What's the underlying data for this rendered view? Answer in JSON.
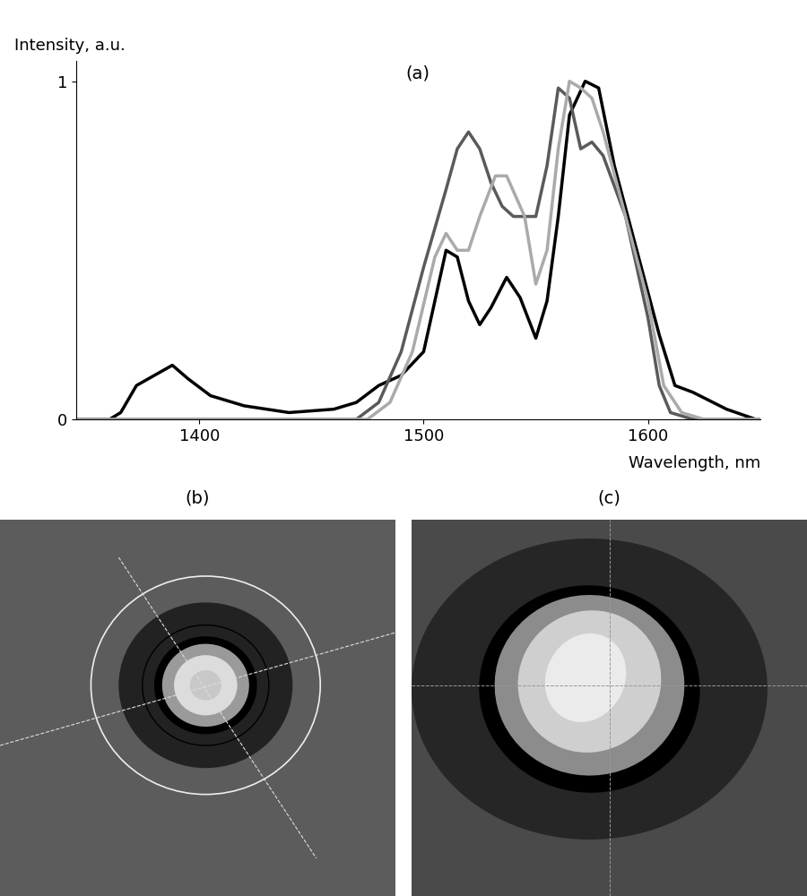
{
  "chart_data": {
    "type": "line",
    "title": "(a)",
    "x_label": "Wavelength, nm",
    "y_label": "Intensity, a.u.",
    "xlim": [
      1345,
      1650
    ],
    "ylim": [
      0,
      1.06
    ],
    "xticks": [
      1400,
      1500,
      1600
    ],
    "yticks": [
      0,
      1
    ],
    "grid": false,
    "series": [
      {
        "color": "#000000",
        "x": [
          1345,
          1360,
          1365,
          1372,
          1380,
          1388,
          1395,
          1405,
          1420,
          1440,
          1460,
          1470,
          1480,
          1490,
          1500,
          1505,
          1510,
          1515,
          1520,
          1525,
          1530,
          1537,
          1543,
          1550,
          1555,
          1560,
          1565,
          1572,
          1578,
          1585,
          1595,
          1605,
          1612,
          1620,
          1635,
          1648
        ],
        "values": [
          0,
          0,
          0.02,
          0.1,
          0.13,
          0.16,
          0.12,
          0.07,
          0.04,
          0.02,
          0.03,
          0.05,
          0.1,
          0.13,
          0.2,
          0.35,
          0.5,
          0.48,
          0.35,
          0.28,
          0.33,
          0.42,
          0.36,
          0.24,
          0.35,
          0.6,
          0.9,
          1.0,
          0.98,
          0.75,
          0.5,
          0.25,
          0.1,
          0.08,
          0.03,
          0
        ]
      },
      {
        "color": "#5a5a5a",
        "x": [
          1345,
          1470,
          1480,
          1490,
          1500,
          1510,
          1515,
          1520,
          1525,
          1530,
          1535,
          1540,
          1550,
          1555,
          1560,
          1565,
          1570,
          1575,
          1580,
          1590,
          1600,
          1605,
          1610,
          1620,
          1650
        ],
        "values": [
          0,
          0,
          0.05,
          0.2,
          0.45,
          0.68,
          0.8,
          0.85,
          0.8,
          0.7,
          0.63,
          0.6,
          0.6,
          0.75,
          0.98,
          0.95,
          0.8,
          0.82,
          0.78,
          0.6,
          0.3,
          0.1,
          0.02,
          0,
          0
        ]
      },
      {
        "color": "#aaaaaa",
        "x": [
          1345,
          1475,
          1485,
          1495,
          1505,
          1510,
          1515,
          1520,
          1525,
          1532,
          1537,
          1545,
          1550,
          1555,
          1560,
          1565,
          1570,
          1575,
          1580,
          1590,
          1600,
          1607,
          1615,
          1625,
          1650
        ],
        "values": [
          0,
          0,
          0.05,
          0.2,
          0.48,
          0.55,
          0.5,
          0.5,
          0.6,
          0.72,
          0.72,
          0.6,
          0.4,
          0.5,
          0.8,
          1.0,
          0.98,
          0.95,
          0.85,
          0.6,
          0.35,
          0.1,
          0.02,
          0,
          0
        ]
      }
    ]
  },
  "images": [
    {
      "label": "(b)"
    },
    {
      "label": "(c)"
    }
  ]
}
